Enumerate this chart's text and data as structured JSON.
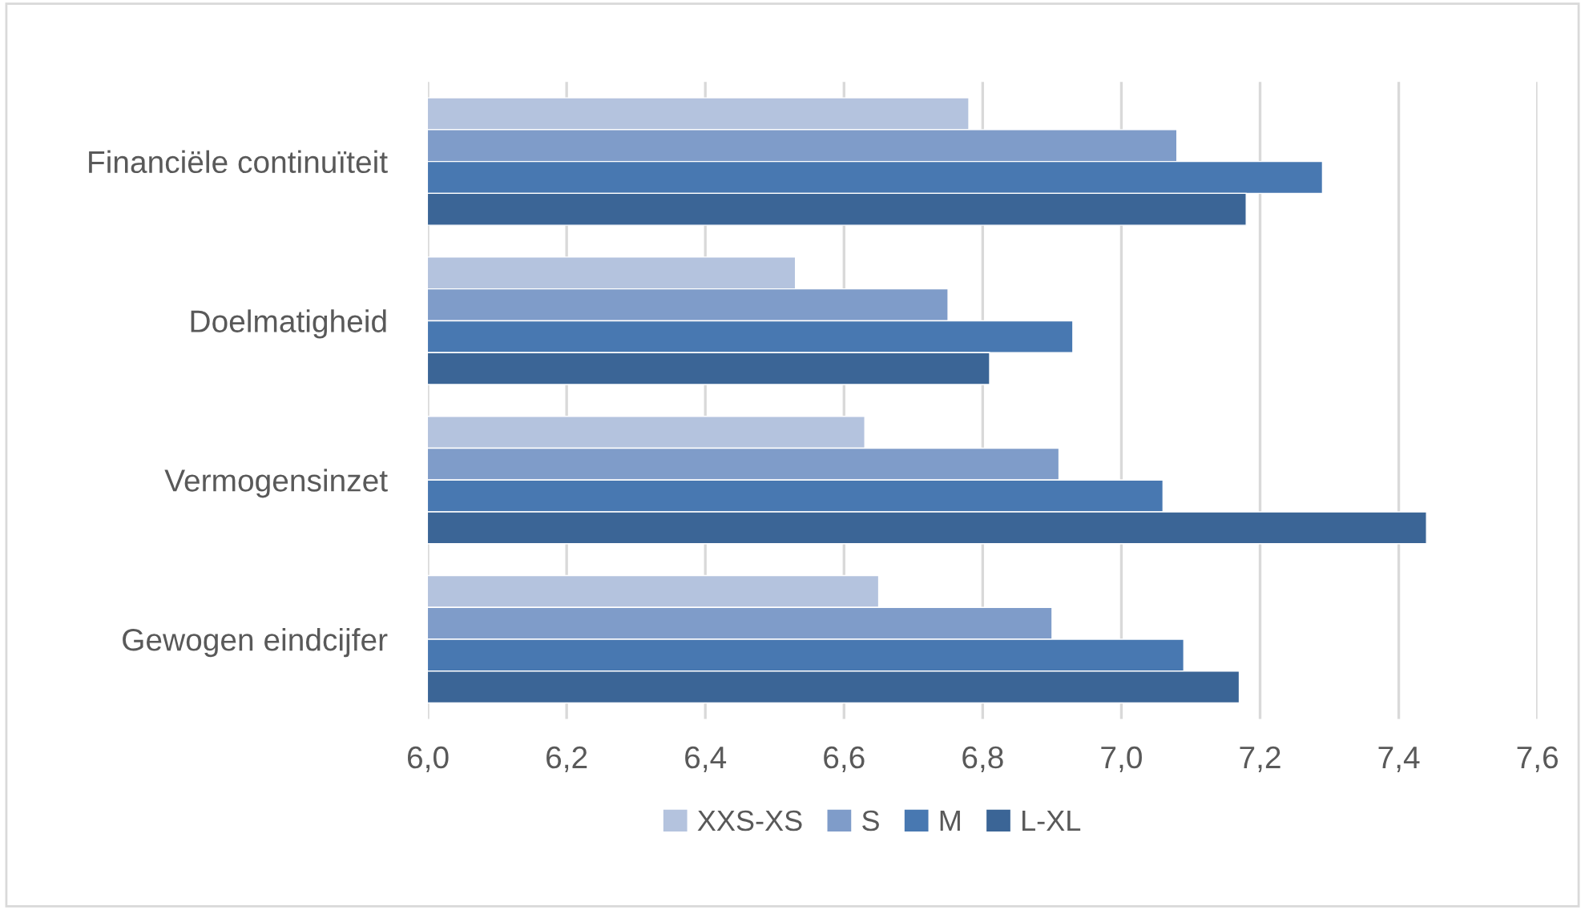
{
  "chart_data": {
    "type": "bar",
    "orientation": "horizontal",
    "categories": [
      "Financiële continuïteit",
      "Doelmatigheid",
      "Vermogensinzet",
      "Gewogen eindcijfer"
    ],
    "series": [
      {
        "name": "XXS-XS",
        "color": "#b4c3de",
        "values": [
          6.78,
          6.53,
          6.63,
          6.65
        ]
      },
      {
        "name": "S",
        "color": "#7f9cc9",
        "values": [
          7.08,
          6.75,
          6.91,
          6.9
        ]
      },
      {
        "name": "M",
        "color": "#4878b1",
        "values": [
          7.29,
          6.93,
          7.06,
          7.09
        ]
      },
      {
        "name": "L-XL",
        "color": "#3b6596",
        "values": [
          7.18,
          6.81,
          7.44,
          7.17
        ]
      }
    ],
    "xlim": [
      6.0,
      7.6
    ],
    "xticks": [
      {
        "value": 6.0,
        "label": "6,0"
      },
      {
        "value": 6.2,
        "label": "6,2"
      },
      {
        "value": 6.4,
        "label": "6,4"
      },
      {
        "value": 6.6,
        "label": "6,6"
      },
      {
        "value": 6.8,
        "label": "6,8"
      },
      {
        "value": 7.0,
        "label": "7,0"
      },
      {
        "value": 7.2,
        "label": "7,2"
      },
      {
        "value": 7.4,
        "label": "7,4"
      },
      {
        "value": 7.6,
        "label": "7,6"
      }
    ],
    "grid": "x",
    "legend": "bottom"
  }
}
